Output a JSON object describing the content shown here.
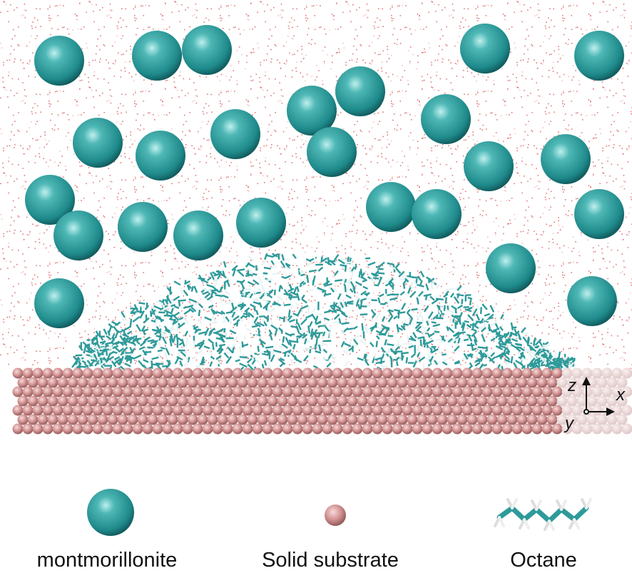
{
  "legend": {
    "items": [
      {
        "label": "montmorillonite"
      },
      {
        "label": "Solid substrate"
      },
      {
        "label": "Octane"
      }
    ]
  },
  "axes": {
    "z": "z",
    "x": "x",
    "y": "y"
  }
}
